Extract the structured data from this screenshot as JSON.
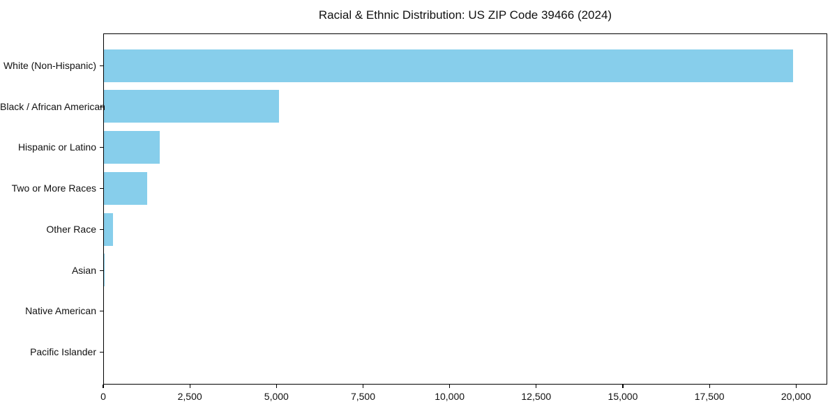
{
  "title": "Racial & Ethnic Distribution: US ZIP Code 39466 (2024)",
  "colors": {
    "bar": "#87CEEB",
    "axis": "#000000",
    "text": "#111111",
    "background": "#FFFFFF"
  },
  "chart_data": {
    "type": "bar",
    "orientation": "horizontal",
    "title": "Racial & Ethnic Distribution: US ZIP Code 39466 (2024)",
    "categories": [
      "White (Non-Hispanic)",
      "Black / African American",
      "Hispanic or Latino",
      "Two or More Races",
      "Other Race",
      "Asian",
      "Native American",
      "Pacific Islander"
    ],
    "values": [
      19900,
      5050,
      1610,
      1250,
      260,
      30,
      0,
      0
    ],
    "xlabel": "",
    "ylabel": "",
    "xlim": [
      0,
      20900
    ],
    "x_ticks": [
      0,
      2500,
      5000,
      7500,
      10000,
      12500,
      15000,
      17500,
      20000
    ],
    "x_tick_labels": [
      "0",
      "2,500",
      "5,000",
      "7,500",
      "10,000",
      "12,500",
      "15,000",
      "17,500",
      "20,000"
    ],
    "bar_color": "#87CEEB",
    "bar_height_fraction": 0.8,
    "grid": false,
    "legend": null
  }
}
